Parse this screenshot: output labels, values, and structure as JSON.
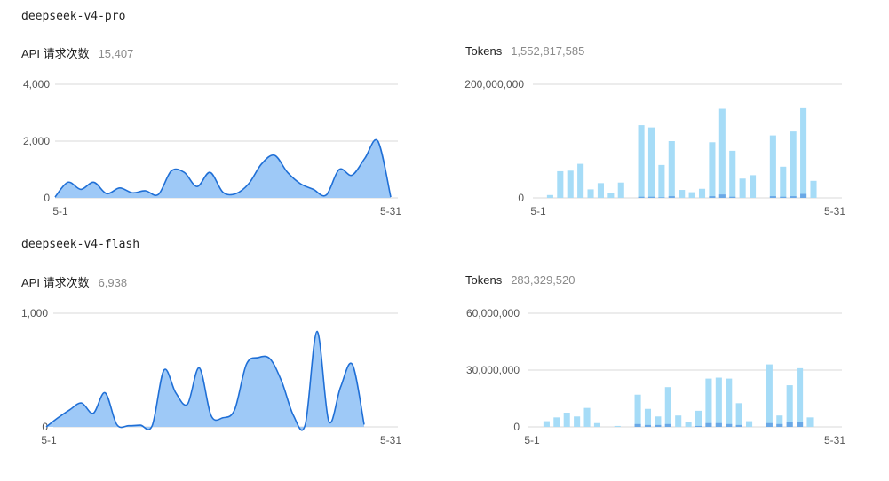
{
  "sections": [
    {
      "model": "deepseek-v4-pro"
    },
    {
      "model": "deepseek-v4-flash"
    }
  ],
  "metrics": {
    "pro_requests": {
      "label": "API 请求次数",
      "value": "15,407"
    },
    "pro_tokens": {
      "label": "Tokens",
      "value": "1,552,817,585"
    },
    "flash_requests": {
      "label": "API 请求次数",
      "value": "6,938"
    },
    "flash_tokens": {
      "label": "Tokens",
      "value": "283,329,520"
    }
  },
  "colors": {
    "area_fill": "#9ec9f7",
    "area_line": "#1f6fd6",
    "bar_light": "#a6dcf7",
    "bar_dark": "#6aa8e6",
    "grid": "#d9d9d9"
  },
  "chart_data": [
    {
      "id": "pro-requests",
      "type": "area",
      "x_start_label": "5-1",
      "x_end_label": "5-31",
      "ylim": [
        0,
        4000
      ],
      "yticks": [
        {
          "v": 0,
          "label": "0"
        },
        {
          "v": 2000,
          "label": "2,000"
        },
        {
          "v": 4000,
          "label": "4,000"
        }
      ],
      "values": [
        30,
        550,
        300,
        550,
        150,
        350,
        180,
        250,
        120,
        950,
        900,
        400,
        900,
        200,
        150,
        500,
        1200,
        1500,
        900,
        500,
        300,
        100,
        1000,
        800,
        1400,
        2000,
        30
      ]
    },
    {
      "id": "pro-tokens",
      "type": "bar",
      "x_start_label": "5-1",
      "x_end_label": "5-31",
      "ylim": [
        0,
        200000000
      ],
      "yticks": [
        {
          "v": 0,
          "label": "0"
        },
        {
          "v": 200000000,
          "label": "200,000,000"
        }
      ],
      "values": [
        0,
        5000000,
        47000000,
        48000000,
        60000000,
        15000000,
        26000000,
        9000000,
        27000000,
        0,
        128000000,
        124000000,
        58000000,
        100000000,
        14000000,
        10000000,
        16000000,
        98000000,
        157000000,
        83000000,
        34000000,
        40000000,
        0,
        110000000,
        55000000,
        117000000,
        158000000,
        30000000
      ],
      "secondary": [
        0,
        0,
        0,
        0,
        0,
        0,
        0,
        0,
        0,
        0,
        2000000,
        2000000,
        1000000,
        3000000,
        0,
        0,
        0,
        3000000,
        6000000,
        2000000,
        0,
        0,
        0,
        3000000,
        2000000,
        3000000,
        7000000,
        0
      ]
    },
    {
      "id": "flash-requests",
      "type": "area",
      "x_start_label": "5-1",
      "x_end_label": "5-31",
      "ylim": [
        0,
        1000
      ],
      "yticks": [
        {
          "v": 0,
          "label": "0"
        },
        {
          "v": 1000,
          "label": "1,000"
        }
      ],
      "values": [
        0,
        80,
        150,
        210,
        120,
        300,
        20,
        10,
        15,
        10,
        500,
        300,
        200,
        520,
        100,
        80,
        150,
        550,
        610,
        600,
        400,
        100,
        20,
        840,
        50,
        350,
        550,
        20
      ]
    },
    {
      "id": "flash-tokens",
      "type": "bar",
      "x_start_label": "5-1",
      "x_end_label": "5-31",
      "ylim": [
        0,
        60000000
      ],
      "yticks": [
        {
          "v": 0,
          "label": "0"
        },
        {
          "v": 30000000,
          "label": "30,000,000"
        },
        {
          "v": 60000000,
          "label": "60,000,000"
        }
      ],
      "values": [
        0,
        3000000,
        5000000,
        7500000,
        5500000,
        10000000,
        2000000,
        0,
        500000,
        0,
        17000000,
        9500000,
        5500000,
        21000000,
        6000000,
        2500000,
        8500000,
        25500000,
        26000000,
        25500000,
        12500000,
        3000000,
        0,
        33000000,
        6000000,
        22000000,
        31000000,
        5000000
      ],
      "secondary": [
        0,
        0,
        0,
        0,
        0,
        0,
        0,
        0,
        0,
        0,
        1500000,
        1000000,
        1000000,
        1500000,
        0,
        0,
        500000,
        2000000,
        2000000,
        1500000,
        1000000,
        0,
        0,
        2000000,
        1500000,
        2500000,
        2500000,
        0
      ]
    }
  ]
}
